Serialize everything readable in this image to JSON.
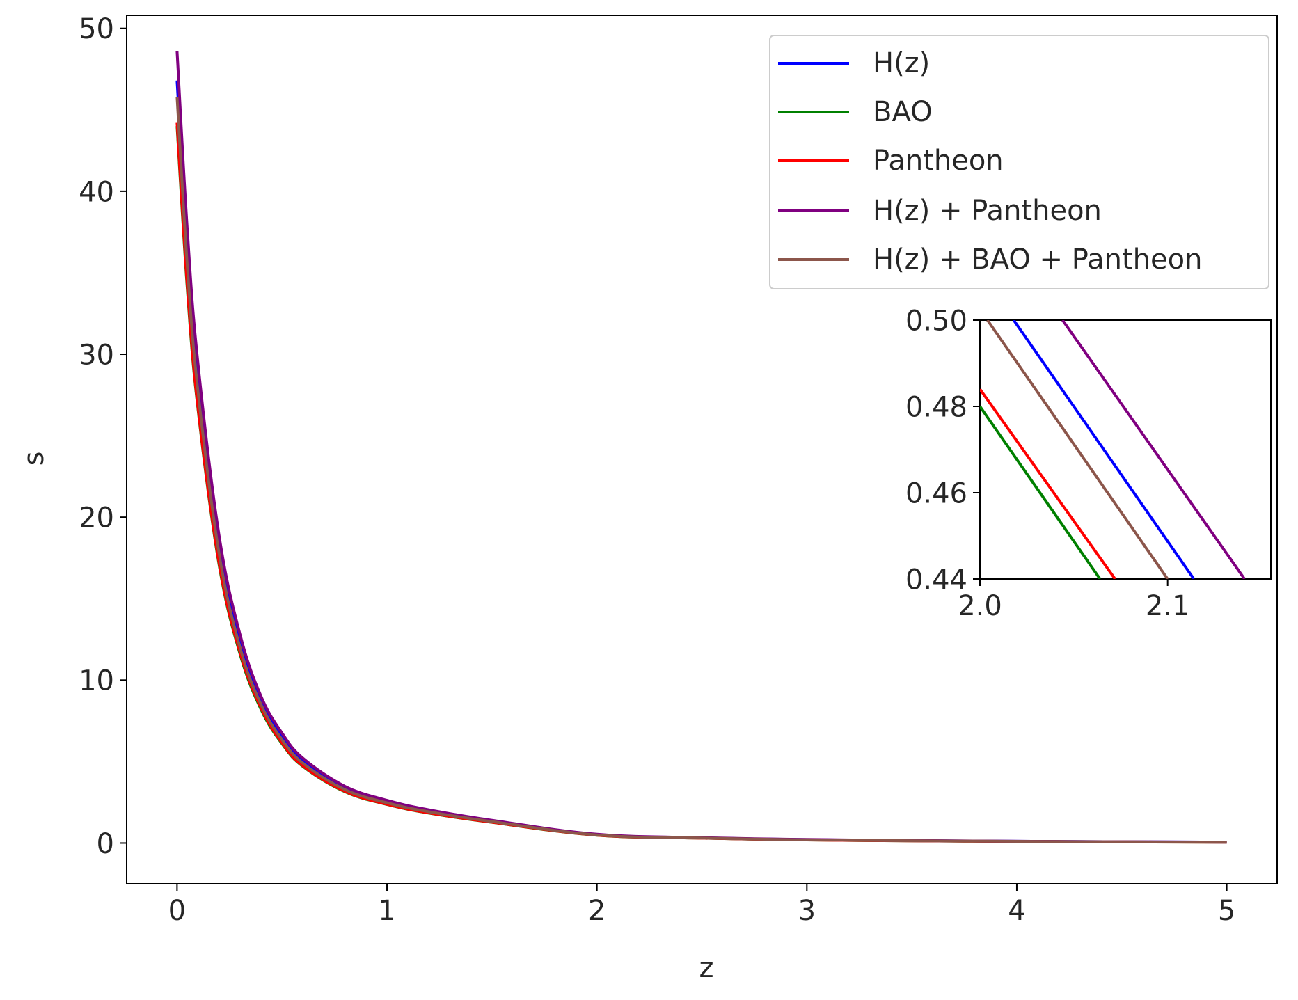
{
  "chart_data": [
    {
      "type": "line",
      "role": "main",
      "xlabel": "z",
      "ylabel": "s",
      "xlim": [
        -0.24,
        5.24
      ],
      "ylim": [
        -2.5,
        50.8
      ],
      "x_ticks": [
        0,
        1,
        2,
        3,
        4,
        5
      ],
      "x_tick_labels": [
        "0",
        "1",
        "2",
        "3",
        "4",
        "5"
      ],
      "y_ticks": [
        0,
        10,
        20,
        30,
        40,
        50
      ],
      "y_tick_labels": [
        "0",
        "10",
        "20",
        "30",
        "40",
        "50"
      ],
      "grid": false,
      "legend_position": "top-right",
      "x": [
        0.0,
        0.05,
        0.1,
        0.2,
        0.3,
        0.4,
        0.5,
        0.6,
        0.8,
        1.0,
        1.2,
        1.5,
        2.0,
        2.5,
        3.0,
        3.5,
        4.0,
        4.5,
        5.0
      ],
      "series": [
        {
          "name": "H(z)",
          "color": "#0000ff",
          "values": [
            46.8,
            36.0,
            28.3,
            18.2,
            12.3,
            8.7,
            6.5,
            5.0,
            3.35,
            2.52,
            1.96,
            1.35,
            0.52,
            0.32,
            0.21,
            0.15,
            0.11,
            0.08,
            0.06
          ]
        },
        {
          "name": "BAO",
          "color": "#008000",
          "values": [
            44.0,
            33.8,
            26.6,
            17.1,
            11.6,
            8.2,
            6.1,
            4.7,
            3.15,
            2.37,
            1.84,
            1.27,
            0.48,
            0.3,
            0.19,
            0.14,
            0.1,
            0.07,
            0.05
          ]
        },
        {
          "name": "Pantheon",
          "color": "#ff0000",
          "values": [
            44.2,
            34.0,
            26.7,
            17.2,
            11.7,
            8.3,
            6.15,
            4.73,
            3.17,
            2.38,
            1.85,
            1.28,
            0.484,
            0.3,
            0.19,
            0.14,
            0.1,
            0.07,
            0.05
          ]
        },
        {
          "name": "H(z) + Pantheon",
          "color": "#800080",
          "values": [
            48.6,
            37.4,
            29.4,
            18.9,
            12.8,
            9.0,
            6.75,
            5.2,
            3.48,
            2.62,
            2.04,
            1.4,
            0.54,
            0.33,
            0.22,
            0.16,
            0.11,
            0.08,
            0.06
          ]
        },
        {
          "name": "H(z) + BAO + Pantheon",
          "color": "#8c564b",
          "values": [
            45.8,
            35.2,
            27.7,
            17.8,
            12.0,
            8.5,
            6.35,
            4.9,
            3.28,
            2.47,
            1.92,
            1.32,
            0.5,
            0.31,
            0.2,
            0.145,
            0.105,
            0.075,
            0.055
          ]
        }
      ]
    },
    {
      "type": "line",
      "role": "inset",
      "xlim": [
        2.0,
        2.155
      ],
      "ylim": [
        0.44,
        0.5
      ],
      "x_ticks": [
        2.0,
        2.1
      ],
      "x_tick_labels": [
        "2.0",
        "2.1"
      ],
      "y_ticks": [
        0.44,
        0.46,
        0.48,
        0.5
      ],
      "y_tick_labels": [
        "0.44",
        "0.46",
        "0.48",
        "0.50"
      ],
      "series": [
        {
          "name": "H(z)",
          "color": "#0000ff",
          "x": [
            2.018,
            2.114
          ],
          "values": [
            0.5,
            0.44
          ]
        },
        {
          "name": "BAO",
          "color": "#008000",
          "x": [
            2.0,
            2.064
          ],
          "values": [
            0.48,
            0.44
          ]
        },
        {
          "name": "Pantheon",
          "color": "#ff0000",
          "x": [
            2.0,
            2.072
          ],
          "values": [
            0.484,
            0.44
          ]
        },
        {
          "name": "H(z) + Pantheon",
          "color": "#800080",
          "x": [
            2.044,
            2.141
          ],
          "values": [
            0.5,
            0.44
          ]
        },
        {
          "name": "H(z) + BAO + Pantheon",
          "color": "#8c564b",
          "x": [
            2.004,
            2.1
          ],
          "values": [
            0.5,
            0.44
          ]
        }
      ]
    }
  ]
}
